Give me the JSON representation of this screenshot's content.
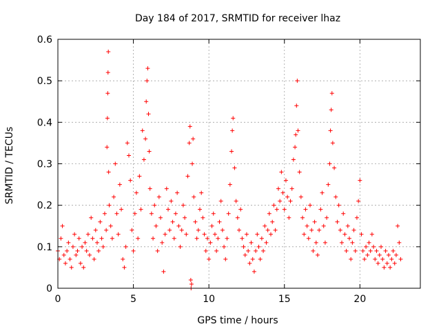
{
  "chart_data": {
    "type": "scatter",
    "title": "Day 184 of 2017, SRMTID for receiver lhaz",
    "xlabel": "GPS time / hours",
    "ylabel": "SRMTID / TECUs",
    "xlim": [
      0,
      24
    ],
    "ylim": [
      0,
      0.6
    ],
    "xticks": [
      0,
      5,
      10,
      15,
      20
    ],
    "xtick_labels": [
      "0",
      "5",
      "10",
      "15",
      "20"
    ],
    "yticks": [
      0,
      0.1,
      0.2,
      0.3,
      0.4,
      0.5,
      0.6
    ],
    "ytick_labels": [
      "0",
      "0.1",
      "0.2",
      "0.3",
      "0.4",
      "0.5",
      "0.6"
    ],
    "grid": true,
    "marker": "plus",
    "color": "#ff0000",
    "series": [
      {
        "name": "SRMTID",
        "points": [
          [
            0.0,
            0.09
          ],
          [
            0.1,
            0.07
          ],
          [
            0.2,
            0.12
          ],
          [
            0.3,
            0.15
          ],
          [
            0.4,
            0.08
          ],
          [
            0.5,
            0.06
          ],
          [
            0.6,
            0.09
          ],
          [
            0.7,
            0.11
          ],
          [
            0.8,
            0.07
          ],
          [
            0.9,
            0.05
          ],
          [
            1.0,
            0.1
          ],
          [
            1.1,
            0.13
          ],
          [
            1.2,
            0.08
          ],
          [
            1.3,
            0.09
          ],
          [
            1.4,
            0.12
          ],
          [
            1.5,
            0.06
          ],
          [
            1.6,
            0.1
          ],
          [
            1.7,
            0.05
          ],
          [
            1.8,
            0.11
          ],
          [
            1.9,
            0.09
          ],
          [
            2.0,
            0.13
          ],
          [
            2.1,
            0.08
          ],
          [
            2.2,
            0.17
          ],
          [
            2.3,
            0.12
          ],
          [
            2.4,
            0.07
          ],
          [
            2.5,
            0.14
          ],
          [
            2.6,
            0.11
          ],
          [
            2.7,
            0.09
          ],
          [
            2.8,
            0.16
          ],
          [
            2.9,
            0.12
          ],
          [
            3.0,
            0.1
          ],
          [
            3.1,
            0.18
          ],
          [
            3.2,
            0.14
          ],
          [
            3.25,
            0.34
          ],
          [
            3.28,
            0.41
          ],
          [
            3.3,
            0.47
          ],
          [
            3.32,
            0.52
          ],
          [
            3.34,
            0.57
          ],
          [
            3.36,
            0.28
          ],
          [
            3.4,
            0.2
          ],
          [
            3.5,
            0.15
          ],
          [
            3.6,
            0.12
          ],
          [
            3.7,
            0.22
          ],
          [
            3.8,
            0.3
          ],
          [
            3.9,
            0.18
          ],
          [
            4.0,
            0.13
          ],
          [
            4.1,
            0.25
          ],
          [
            4.2,
            0.19
          ],
          [
            4.3,
            0.07
          ],
          [
            4.4,
            0.05
          ],
          [
            4.5,
            0.1
          ],
          [
            4.6,
            0.35
          ],
          [
            4.7,
            0.32
          ],
          [
            4.8,
            0.26
          ],
          [
            4.9,
            0.14
          ],
          [
            5.0,
            0.09
          ],
          [
            5.1,
            0.18
          ],
          [
            5.2,
            0.23
          ],
          [
            5.3,
            0.12
          ],
          [
            5.4,
            0.27
          ],
          [
            5.5,
            0.19
          ],
          [
            5.6,
            0.38
          ],
          [
            5.7,
            0.31
          ],
          [
            5.8,
            0.36
          ],
          [
            5.85,
            0.45
          ],
          [
            5.9,
            0.5
          ],
          [
            5.95,
            0.53
          ],
          [
            6.0,
            0.42
          ],
          [
            6.05,
            0.33
          ],
          [
            6.1,
            0.24
          ],
          [
            6.2,
            0.18
          ],
          [
            6.3,
            0.12
          ],
          [
            6.4,
            0.2
          ],
          [
            6.5,
            0.15
          ],
          [
            6.6,
            0.09
          ],
          [
            6.7,
            0.22
          ],
          [
            6.8,
            0.17
          ],
          [
            6.9,
            0.11
          ],
          [
            7.0,
            0.04
          ],
          [
            7.1,
            0.13
          ],
          [
            7.2,
            0.24
          ],
          [
            7.3,
            0.19
          ],
          [
            7.4,
            0.14
          ],
          [
            7.5,
            0.21
          ],
          [
            7.6,
            0.16
          ],
          [
            7.7,
            0.12
          ],
          [
            7.8,
            0.18
          ],
          [
            7.9,
            0.23
          ],
          [
            8.0,
            0.15
          ],
          [
            8.1,
            0.1
          ],
          [
            8.2,
            0.14
          ],
          [
            8.3,
            0.2
          ],
          [
            8.4,
            0.17
          ],
          [
            8.5,
            0.13
          ],
          [
            8.6,
            0.27
          ],
          [
            8.7,
            0.35
          ],
          [
            8.75,
            0.39
          ],
          [
            8.8,
            0.02
          ],
          [
            8.82,
            0.0
          ],
          [
            8.85,
            0.01
          ],
          [
            8.9,
            0.3
          ],
          [
            8.95,
            0.36
          ],
          [
            9.0,
            0.22
          ],
          [
            9.1,
            0.16
          ],
          [
            9.2,
            0.12
          ],
          [
            9.3,
            0.14
          ],
          [
            9.4,
            0.19
          ],
          [
            9.5,
            0.23
          ],
          [
            9.6,
            0.17
          ],
          [
            9.7,
            0.13
          ],
          [
            9.8,
            0.09
          ],
          [
            9.9,
            0.12
          ],
          [
            10.0,
            0.07
          ],
          [
            10.1,
            0.11
          ],
          [
            10.2,
            0.15
          ],
          [
            10.3,
            0.18
          ],
          [
            10.4,
            0.13
          ],
          [
            10.5,
            0.09
          ],
          [
            10.6,
            0.12
          ],
          [
            10.7,
            0.16
          ],
          [
            10.8,
            0.21
          ],
          [
            10.9,
            0.14
          ],
          [
            11.0,
            0.1
          ],
          [
            11.1,
            0.07
          ],
          [
            11.2,
            0.12
          ],
          [
            11.3,
            0.18
          ],
          [
            11.4,
            0.25
          ],
          [
            11.5,
            0.33
          ],
          [
            11.55,
            0.38
          ],
          [
            11.6,
            0.41
          ],
          [
            11.7,
            0.29
          ],
          [
            11.8,
            0.21
          ],
          [
            11.9,
            0.17
          ],
          [
            12.0,
            0.14
          ],
          [
            12.1,
            0.19
          ],
          [
            12.2,
            0.12
          ],
          [
            12.3,
            0.1
          ],
          [
            12.4,
            0.08
          ],
          [
            12.5,
            0.13
          ],
          [
            12.6,
            0.09
          ],
          [
            12.7,
            0.06
          ],
          [
            12.8,
            0.11
          ],
          [
            12.9,
            0.07
          ],
          [
            13.0,
            0.04
          ],
          [
            13.1,
            0.09
          ],
          [
            13.2,
            0.13
          ],
          [
            13.3,
            0.1
          ],
          [
            13.4,
            0.07
          ],
          [
            13.5,
            0.12
          ],
          [
            13.6,
            0.09
          ],
          [
            13.7,
            0.15
          ],
          [
            13.8,
            0.11
          ],
          [
            13.9,
            0.14
          ],
          [
            14.0,
            0.18
          ],
          [
            14.1,
            0.13
          ],
          [
            14.2,
            0.16
          ],
          [
            14.3,
            0.2
          ],
          [
            14.4,
            0.14
          ],
          [
            14.5,
            0.19
          ],
          [
            14.6,
            0.24
          ],
          [
            14.7,
            0.21
          ],
          [
            14.8,
            0.28
          ],
          [
            14.9,
            0.23
          ],
          [
            15.0,
            0.19
          ],
          [
            15.1,
            0.26
          ],
          [
            15.2,
            0.22
          ],
          [
            15.3,
            0.17
          ],
          [
            15.4,
            0.21
          ],
          [
            15.5,
            0.24
          ],
          [
            15.6,
            0.31
          ],
          [
            15.7,
            0.34
          ],
          [
            15.75,
            0.37
          ],
          [
            15.8,
            0.44
          ],
          [
            15.85,
            0.5
          ],
          [
            15.9,
            0.38
          ],
          [
            16.0,
            0.28
          ],
          [
            16.1,
            0.22
          ],
          [
            16.2,
            0.17
          ],
          [
            16.3,
            0.13
          ],
          [
            16.4,
            0.19
          ],
          [
            16.5,
            0.15
          ],
          [
            16.6,
            0.12
          ],
          [
            16.7,
            0.2
          ],
          [
            16.8,
            0.14
          ],
          [
            16.9,
            0.09
          ],
          [
            17.0,
            0.16
          ],
          [
            17.1,
            0.11
          ],
          [
            17.2,
            0.08
          ],
          [
            17.3,
            0.14
          ],
          [
            17.4,
            0.19
          ],
          [
            17.5,
            0.23
          ],
          [
            17.6,
            0.15
          ],
          [
            17.7,
            0.11
          ],
          [
            17.8,
            0.17
          ],
          [
            17.9,
            0.25
          ],
          [
            18.0,
            0.3
          ],
          [
            18.05,
            0.38
          ],
          [
            18.1,
            0.43
          ],
          [
            18.15,
            0.47
          ],
          [
            18.2,
            0.35
          ],
          [
            18.3,
            0.29
          ],
          [
            18.4,
            0.22
          ],
          [
            18.5,
            0.16
          ],
          [
            18.6,
            0.2
          ],
          [
            18.7,
            0.14
          ],
          [
            18.8,
            0.11
          ],
          [
            18.9,
            0.18
          ],
          [
            19.0,
            0.13
          ],
          [
            19.1,
            0.09
          ],
          [
            19.2,
            0.15
          ],
          [
            19.3,
            0.12
          ],
          [
            19.4,
            0.07
          ],
          [
            19.5,
            0.11
          ],
          [
            19.6,
            0.14
          ],
          [
            19.7,
            0.09
          ],
          [
            19.8,
            0.17
          ],
          [
            19.9,
            0.21
          ],
          [
            20.0,
            0.26
          ],
          [
            20.1,
            0.13
          ],
          [
            20.2,
            0.09
          ],
          [
            20.3,
            0.07
          ],
          [
            20.4,
            0.1
          ],
          [
            20.5,
            0.08
          ],
          [
            20.6,
            0.11
          ],
          [
            20.7,
            0.09
          ],
          [
            20.8,
            0.13
          ],
          [
            20.9,
            0.1
          ],
          [
            21.0,
            0.07
          ],
          [
            21.1,
            0.09
          ],
          [
            21.2,
            0.06
          ],
          [
            21.3,
            0.08
          ],
          [
            21.4,
            0.1
          ],
          [
            21.5,
            0.07
          ],
          [
            21.6,
            0.05
          ],
          [
            21.7,
            0.09
          ],
          [
            21.8,
            0.06
          ],
          [
            21.9,
            0.08
          ],
          [
            22.0,
            0.05
          ],
          [
            22.1,
            0.07
          ],
          [
            22.2,
            0.09
          ],
          [
            22.3,
            0.06
          ],
          [
            22.4,
            0.08
          ],
          [
            22.5,
            0.15
          ],
          [
            22.6,
            0.11
          ],
          [
            22.7,
            0.07
          ]
        ]
      }
    ]
  }
}
